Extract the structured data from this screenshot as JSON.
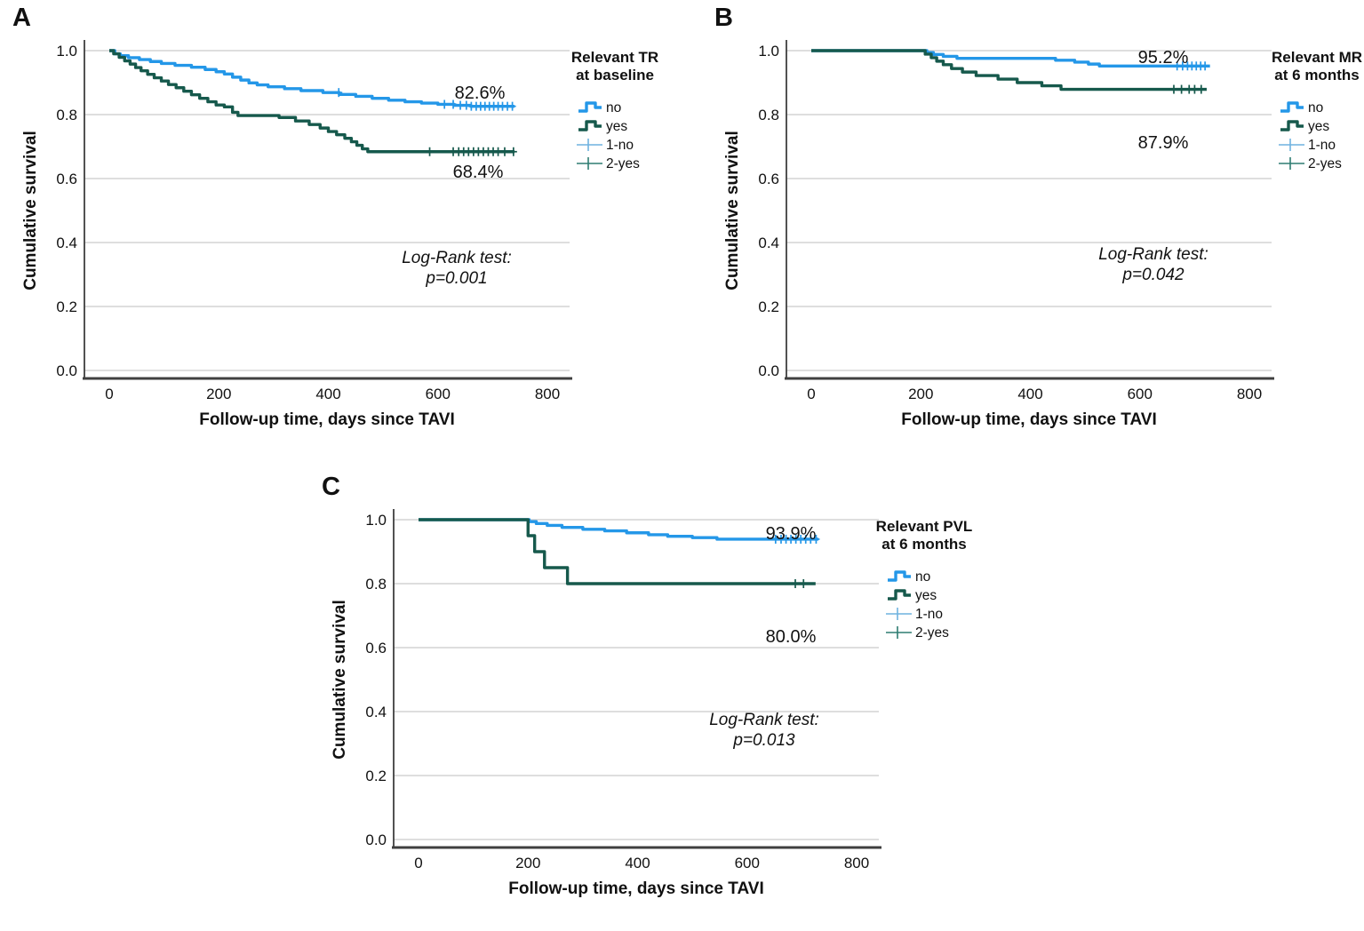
{
  "colors": {
    "blue": "#2497E8",
    "green": "#16594C",
    "lightBlue": "#6FB2DF",
    "teal": "#2E7D72",
    "grid": "#C9C9C9",
    "axis": "#3F3F3F",
    "text": "#111111"
  },
  "chart_data": {
    "type": "line",
    "subtype": "kaplan-meier-step",
    "x_label": "Follow-up time, days since TAVI",
    "y_label": "Cumulative survival",
    "x_ticks": [
      0,
      200,
      400,
      600,
      800
    ],
    "y_ticks": [
      1.0,
      0.8,
      0.6,
      0.4,
      0.2,
      0.0
    ],
    "x_range": [
      0,
      840
    ],
    "y_range": [
      0.0,
      1.05
    ],
    "grid": "horizontal-only",
    "legend_position": "right-outside",
    "panels": [
      {
        "panel_label": "A",
        "legend_title": [
          "Relevant TR",
          "at baseline"
        ],
        "legend_items": [
          {
            "label": "no",
            "type": "step",
            "color": "blue"
          },
          {
            "label": "yes",
            "type": "step",
            "color": "green"
          },
          {
            "label": "1-no",
            "type": "censor",
            "color": "lightBlue"
          },
          {
            "label": "2-yes",
            "type": "censor",
            "color": "teal"
          }
        ],
        "log_rank": {
          "lines": [
            "Log-Rank test:",
            "p=0.001"
          ],
          "x": 514,
          "y": 296
        },
        "annotations": [
          {
            "text": "82.6%",
            "x": 540,
            "y": 104
          },
          {
            "text": "68.4%",
            "x": 538,
            "y": 193
          }
        ],
        "series": [
          {
            "name": "no",
            "color": "blue",
            "final_pct": "82.6%",
            "points": [
              [
                0,
                1
              ],
              [
                10,
                0.99
              ],
              [
                20,
                0.984
              ],
              [
                35,
                0.978
              ],
              [
                55,
                0.972
              ],
              [
                75,
                0.966
              ],
              [
                95,
                0.96
              ],
              [
                120,
                0.954
              ],
              [
                150,
                0.948
              ],
              [
                175,
                0.941
              ],
              [
                195,
                0.934
              ],
              [
                210,
                0.927
              ],
              [
                225,
                0.917
              ],
              [
                240,
                0.908
              ],
              [
                255,
                0.899
              ],
              [
                270,
                0.893
              ],
              [
                290,
                0.887
              ],
              [
                320,
                0.881
              ],
              [
                350,
                0.875
              ],
              [
                390,
                0.869
              ],
              [
                420,
                0.863
              ],
              [
                450,
                0.857
              ],
              [
                480,
                0.851
              ],
              [
                510,
                0.845
              ],
              [
                540,
                0.84
              ],
              [
                570,
                0.836
              ],
              [
                600,
                0.832
              ],
              [
                630,
                0.829
              ],
              [
                660,
                0.826
              ],
              [
                740,
                0.826
              ]
            ],
            "censor_days": [
              419,
              612,
              628,
              641,
              652,
              661,
              670,
              678,
              686,
              694,
              702,
              710,
              718,
              727,
              736
            ]
          },
          {
            "name": "yes",
            "color": "green",
            "final_pct": "68.4%",
            "points": [
              [
                0,
                1
              ],
              [
                8,
                0.99
              ],
              [
                18,
                0.979
              ],
              [
                28,
                0.968
              ],
              [
                38,
                0.958
              ],
              [
                48,
                0.947
              ],
              [
                58,
                0.937
              ],
              [
                70,
                0.926
              ],
              [
                82,
                0.915
              ],
              [
                95,
                0.905
              ],
              [
                108,
                0.894
              ],
              [
                122,
                0.884
              ],
              [
                136,
                0.873
              ],
              [
                150,
                0.862
              ],
              [
                165,
                0.851
              ],
              [
                180,
                0.84
              ],
              [
                195,
                0.83
              ],
              [
                210,
                0.824
              ],
              [
                225,
                0.807
              ],
              [
                235,
                0.797
              ],
              [
                310,
                0.791
              ],
              [
                340,
                0.78
              ],
              [
                365,
                0.769
              ],
              [
                385,
                0.758
              ],
              [
                400,
                0.747
              ],
              [
                415,
                0.737
              ],
              [
                430,
                0.726
              ],
              [
                442,
                0.715
              ],
              [
                452,
                0.704
              ],
              [
                462,
                0.693
              ],
              [
                472,
                0.684
              ],
              [
                740,
                0.684
              ]
            ],
            "censor_days": [
              585,
              628,
              638,
              647,
              656,
              665,
              674,
              683,
              692,
              701,
              710,
              722,
              738
            ]
          }
        ]
      },
      {
        "panel_label": "B",
        "legend_title": [
          "Relevant MR",
          "at 6 months"
        ],
        "legend_items": [
          {
            "label": "no",
            "type": "step",
            "color": "blue"
          },
          {
            "label": "yes",
            "type": "step",
            "color": "green"
          },
          {
            "label": "1-no",
            "type": "censor",
            "color": "lightBlue"
          },
          {
            "label": "2-yes",
            "type": "censor",
            "color": "teal"
          }
        ],
        "log_rank": {
          "lines": [
            "Log-Rank test:",
            "p=0.042"
          ],
          "x": 508,
          "y": 292
        },
        "annotations": [
          {
            "text": "95.2%",
            "x": 519,
            "y": 64
          },
          {
            "text": "87.9%",
            "x": 519,
            "y": 160
          }
        ],
        "series": [
          {
            "name": "no",
            "color": "blue",
            "final_pct": "95.2%",
            "points": [
              [
                0,
                1
              ],
              [
                205,
                1
              ],
              [
                211,
                0.994
              ],
              [
                223,
                0.988
              ],
              [
                241,
                0.982
              ],
              [
                266,
                0.976
              ],
              [
                430,
                0.976
              ],
              [
                446,
                0.97
              ],
              [
                481,
                0.964
              ],
              [
                506,
                0.958
              ],
              [
                526,
                0.952
              ],
              [
                728,
                0.952
              ]
            ],
            "censor_days": [
              668,
              678,
              687,
              695,
              703,
              711,
              719
            ]
          },
          {
            "name": "yes",
            "color": "green",
            "final_pct": "87.9%",
            "points": [
              [
                0,
                1
              ],
              [
                200,
                1
              ],
              [
                208,
                0.989
              ],
              [
                219,
                0.978
              ],
              [
                229,
                0.967
              ],
              [
                241,
                0.956
              ],
              [
                256,
                0.944
              ],
              [
                276,
                0.933
              ],
              [
                301,
                0.922
              ],
              [
                341,
                0.911
              ],
              [
                376,
                0.9
              ],
              [
                421,
                0.89
              ],
              [
                456,
                0.879
              ],
              [
                722,
                0.879
              ]
            ],
            "censor_days": [
              662,
              676,
              690,
              700,
              712
            ]
          }
        ]
      },
      {
        "panel_label": "C",
        "legend_title": [
          "Relevant PVL",
          "at 6 months"
        ],
        "legend_items": [
          {
            "label": "no",
            "type": "step",
            "color": "blue"
          },
          {
            "label": "yes",
            "type": "step",
            "color": "green"
          },
          {
            "label": "1-no",
            "type": "censor",
            "color": "lightBlue"
          },
          {
            "label": "2-yes",
            "type": "censor",
            "color": "teal"
          }
        ],
        "log_rank": {
          "lines": [
            "Log-Rank test:",
            "p=0.013"
          ],
          "x": 512,
          "y": 288
        },
        "annotations": [
          {
            "text": "93.9%",
            "x": 542,
            "y": 72
          },
          {
            "text": "80.0%",
            "x": 542,
            "y": 188
          }
        ],
        "series": [
          {
            "name": "no",
            "color": "blue",
            "final_pct": "93.9%",
            "points": [
              [
                0,
                1
              ],
              [
                195,
                1
              ],
              [
                202,
                0.994
              ],
              [
                215,
                0.988
              ],
              [
                235,
                0.982
              ],
              [
                262,
                0.976
              ],
              [
                300,
                0.97
              ],
              [
                340,
                0.965
              ],
              [
                380,
                0.959
              ],
              [
                420,
                0.953
              ],
              [
                455,
                0.948
              ],
              [
                500,
                0.944
              ],
              [
                545,
                0.939
              ],
              [
                730,
                0.939
              ]
            ],
            "censor_days": [
              652,
              662,
              671,
              680,
              689,
              698,
              707,
              716,
              726
            ]
          },
          {
            "name": "yes",
            "color": "green",
            "final_pct": "80.0%",
            "points": [
              [
                0,
                1
              ],
              [
                197,
                1
              ],
              [
                200,
                0.95
              ],
              [
                212,
                0.9
              ],
              [
                230,
                0.85
              ],
              [
                272,
                0.8
              ],
              [
                725,
                0.8
              ]
            ],
            "censor_days": [
              688,
              703
            ]
          }
        ]
      }
    ]
  }
}
